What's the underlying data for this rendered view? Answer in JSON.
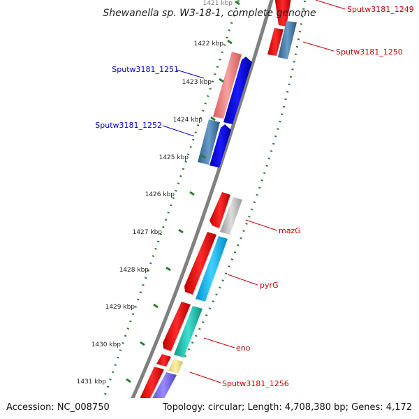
{
  "title": "Shewanella sp. W3-18-1, complete genome",
  "footer": {
    "accession": "Accession: NC_008750",
    "topology": "Topology: circular; Length: 4,708,380 bp; Genes: 4,172"
  },
  "ticks": [
    {
      "label": "1421 kbp",
      "partial": true
    },
    {
      "label": "1422 kbp"
    },
    {
      "label": "1423 kbp"
    },
    {
      "label": "1424 kbp"
    },
    {
      "label": "1425 kbp"
    },
    {
      "label": "1426 kbp"
    },
    {
      "label": "1427 kbp"
    },
    {
      "label": "1428 kbp"
    },
    {
      "label": "1429 kbp"
    },
    {
      "label": "1430 kbp"
    },
    {
      "label": "1431 kbp"
    }
  ],
  "gene_labels": [
    {
      "name": "Sputw3181_1249",
      "strand": "forward"
    },
    {
      "name": "Sputw3181_1250",
      "strand": "forward"
    },
    {
      "name": "Sputw3181_1251",
      "strand": "reverse"
    },
    {
      "name": "Sputw3181_1252",
      "strand": "reverse"
    },
    {
      "name": "mazG",
      "strand": "forward"
    },
    {
      "name": "pyrG",
      "strand": "forward"
    },
    {
      "name": "eno",
      "strand": "forward"
    },
    {
      "name": "Sputw3181_1256",
      "strand": "forward"
    }
  ],
  "colors": {
    "backbone": "#808080",
    "ticks": "#2e7d32",
    "red": "#ff0000",
    "blue": "#0000ee",
    "steel": "#4a7fae",
    "pink": "#f08080",
    "gray": "#b8b8b8",
    "cyan": "#00b7ff",
    "teal": "#20c0b0",
    "khaki": "#f0e68c",
    "purple": "#7b68ee"
  }
}
